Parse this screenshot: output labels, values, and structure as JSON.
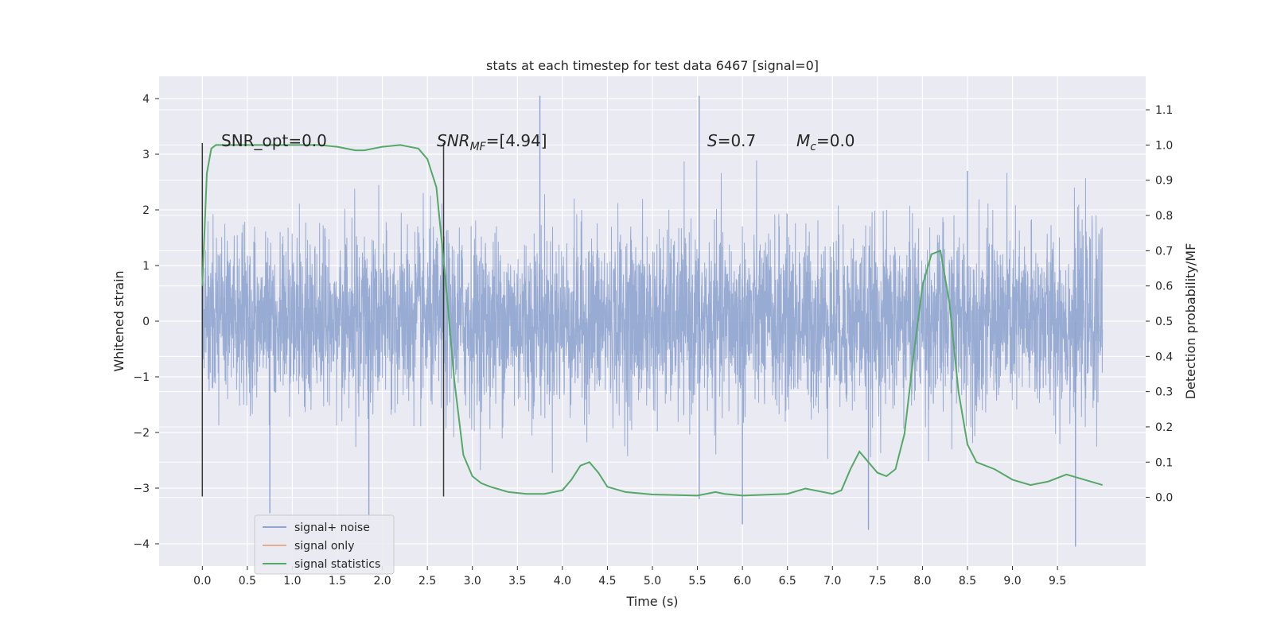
{
  "chart_data": {
    "type": "line",
    "title": "stats at each timestep for test data 6467 [signal=0]",
    "xlabel": "Time (s)",
    "ylabel": "Whitened strain",
    "ylabel_right": "Detection probability/MF",
    "xlim": [
      -0.48,
      10.48
    ],
    "ylim": [
      -4.4,
      4.4
    ],
    "ylim_right": [
      -0.195,
      1.195
    ],
    "x_ticks": [
      "0.0",
      "0.5",
      "1.0",
      "1.5",
      "2.0",
      "2.5",
      "3.0",
      "3.5",
      "4.0",
      "4.5",
      "5.0",
      "5.5",
      "6.0",
      "6.5",
      "7.0",
      "7.5",
      "8.0",
      "8.5",
      "9.0",
      "9.5"
    ],
    "y_ticks": [
      "4",
      "3",
      "2",
      "1",
      "0",
      "−1",
      "−2",
      "−3",
      "−4"
    ],
    "y_ticks_right": [
      "1.1",
      "1.0",
      "0.9",
      "0.8",
      "0.7",
      "0.6",
      "0.5",
      "0.4",
      "0.3",
      "0.2",
      "0.1",
      "0.0"
    ],
    "grid": true,
    "legend_placement": "lower-left",
    "annotations": {
      "snr_opt": "SNR_opt=0.0",
      "snr_mf_label": "SNR",
      "snr_mf_sub": "MF",
      "snr_mf_value": "=[4.94]",
      "s_label": "S",
      "s_value": "=0.7",
      "mc_label": "M",
      "mc_sub": "c",
      "mc_value": "=0.0"
    },
    "vertical_markers": [
      0.0,
      2.68
    ],
    "series": [
      {
        "name": "signal+ noise",
        "axis": "left",
        "color": "#8fa4cf",
        "x_range": [
          0.0,
          10.0
        ],
        "typical_envelope": [
          -1.3,
          1.3
        ],
        "extremes": [
          [
            0.0,
            3.2
          ],
          [
            0.0,
            -3.15
          ],
          [
            0.75,
            -3.45
          ],
          [
            1.85,
            -3.6
          ],
          [
            3.75,
            4.05
          ],
          [
            5.52,
            4.05
          ],
          [
            5.52,
            -3.2
          ],
          [
            6.0,
            -3.65
          ],
          [
            7.4,
            -3.75
          ],
          [
            8.5,
            2.7
          ],
          [
            9.7,
            -4.05
          ]
        ]
      },
      {
        "name": "signal only",
        "axis": "left",
        "color": "#dd8452",
        "values": []
      },
      {
        "name": "signal statistics",
        "axis": "right",
        "color": "#55a868",
        "x": [
          0.0,
          0.05,
          0.1,
          0.15,
          0.2,
          0.3,
          0.5,
          0.8,
          1.0,
          1.3,
          1.5,
          1.7,
          1.8,
          1.9,
          2.0,
          2.2,
          2.4,
          2.5,
          2.6,
          2.7,
          2.8,
          2.9,
          3.0,
          3.1,
          3.2,
          3.4,
          3.6,
          3.8,
          4.0,
          4.1,
          4.2,
          4.3,
          4.4,
          4.5,
          4.7,
          5.0,
          5.5,
          5.7,
          5.8,
          6.0,
          6.5,
          6.7,
          7.0,
          7.1,
          7.2,
          7.3,
          7.4,
          7.5,
          7.6,
          7.7,
          7.8,
          7.9,
          8.0,
          8.1,
          8.2,
          8.3,
          8.4,
          8.5,
          8.6,
          8.8,
          9.0,
          9.2,
          9.4,
          9.6,
          9.8,
          10.0
        ],
        "values": [
          0.6,
          0.92,
          0.99,
          1.0,
          1.0,
          1.0,
          1.0,
          1.0,
          1.0,
          1.0,
          0.995,
          0.985,
          0.985,
          0.99,
          0.995,
          1.0,
          0.99,
          0.96,
          0.88,
          0.62,
          0.33,
          0.12,
          0.06,
          0.04,
          0.03,
          0.015,
          0.01,
          0.01,
          0.02,
          0.05,
          0.09,
          0.1,
          0.07,
          0.03,
          0.015,
          0.008,
          0.005,
          0.015,
          0.01,
          0.005,
          0.01,
          0.025,
          0.01,
          0.02,
          0.08,
          0.13,
          0.1,
          0.07,
          0.06,
          0.08,
          0.18,
          0.4,
          0.6,
          0.69,
          0.7,
          0.55,
          0.3,
          0.15,
          0.1,
          0.08,
          0.05,
          0.035,
          0.045,
          0.065,
          0.05,
          0.035
        ]
      }
    ]
  }
}
